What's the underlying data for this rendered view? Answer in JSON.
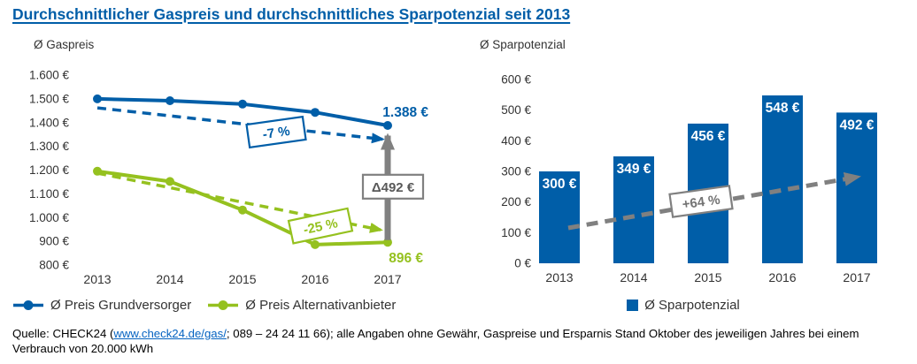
{
  "title": "Durchschnittlicher Gaspreis und durchschnittliches Sparpotenzial seit 2013",
  "colors": {
    "blue": "#005EA8",
    "green": "#95C11F",
    "gray": "#808080",
    "dark_gray": "#595959",
    "text": "#333333",
    "link": "#0563C1"
  },
  "chart_data": [
    {
      "type": "line",
      "title": "Ø Gaspreis",
      "categories": [
        "2013",
        "2014",
        "2015",
        "2016",
        "2017"
      ],
      "series": [
        {
          "name": "Ø Preis Grundversorger",
          "color": "#005EA8",
          "values": [
            1500,
            1492,
            1478,
            1443,
            1388
          ],
          "end_label": "1.388 €"
        },
        {
          "name": "Ø Preis Alternativanbieter",
          "color": "#95C11F",
          "values": [
            1195,
            1152,
            1032,
            886,
            896
          ],
          "end_label": "896 €"
        }
      ],
      "ylim": [
        800,
        1600
      ],
      "ytick_step": 100,
      "ytick_labels": [
        "800 €",
        "900 €",
        "1.000 €",
        "1.100 €",
        "1.200 €",
        "1.300 €",
        "1.400 €",
        "1.500 €",
        "1.600 €"
      ],
      "annotations": [
        {
          "id": "grundversorger-trend",
          "label": "-7 %"
        },
        {
          "id": "alternativanbieter-trend",
          "label": "-25 %"
        },
        {
          "id": "delta-2017",
          "label": "Δ492 €"
        }
      ],
      "grid": false,
      "legend_position": "bottom"
    },
    {
      "type": "bar",
      "title": "Ø Sparpotenzial",
      "legend_label": "Ø Sparpotenzial",
      "categories": [
        "2013",
        "2014",
        "2015",
        "2016",
        "2017"
      ],
      "values": [
        300,
        349,
        456,
        548,
        492
      ],
      "bar_labels": [
        "300 €",
        "349 €",
        "456 €",
        "548 €",
        "492 €"
      ],
      "bar_color": "#005EA8",
      "ylim": [
        0,
        600
      ],
      "ytick_step": 100,
      "ytick_labels": [
        "0 €",
        "100 €",
        "200 €",
        "300 €",
        "400 €",
        "500 €",
        "600 €"
      ],
      "annotations": [
        {
          "id": "savings-trend",
          "label": "+64 %"
        }
      ],
      "grid": false,
      "legend_position": "bottom"
    }
  ],
  "footer": {
    "prefix": "Quelle: CHECK24 (",
    "link_text": "www.check24.de/gas/",
    "after_link": "; 089 – 24 24 11 66); alle Angaben ohne Gewähr, Gaspreise und Ersparnis Stand Oktober des jeweiligen Jahres bei einem Verbrauch von 20.000 kWh"
  }
}
